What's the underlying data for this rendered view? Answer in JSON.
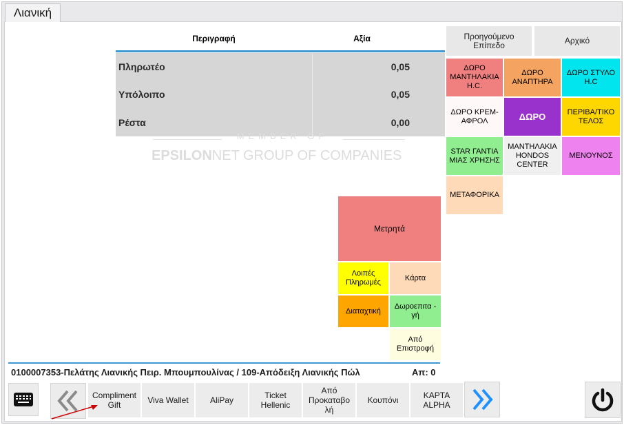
{
  "tab": {
    "label": "Λιανική"
  },
  "table": {
    "headers": {
      "description": "Περιγραφή",
      "value": "Αξία"
    },
    "totals": [
      {
        "label": "Πληρωτέο",
        "value": "0,05"
      },
      {
        "label": "Υπόλοιπο",
        "value": "0,05"
      },
      {
        "label": "Ρέστα",
        "value": "0,00"
      }
    ]
  },
  "watermark": {
    "line1": "MEMBER OF",
    "line2_bold": "EPSILON",
    "line2_rest": "NET GROUP OF COMPANIES"
  },
  "nav": {
    "previous_level": "Προηγούμενο Επίπεδο",
    "home": "Αρχικό"
  },
  "categories": [
    {
      "label": "ΔΩΡΟ ΜΑΝΤΗΛΑΚΙΑ Η.C.",
      "color": "#f08080"
    },
    {
      "label": "ΔΩΡΟ ΑΝΑΠΤΗΡΑ",
      "color": "#f4a460"
    },
    {
      "label": "ΔΩΡΟ ΣΤΥΛΟ Η.C",
      "color": "#00e5ee"
    },
    {
      "label": "ΔΩΡΟ ΚΡΕΜ-ΑΦΡΟΛ",
      "color": "#fff8f8"
    },
    {
      "label": "ΔΩΡΟ",
      "color": "#9932cc"
    },
    {
      "label": "ΠΕΡΙΒΑ/ΤΙΚΟ ΤΕΛΟΣ",
      "color": "#ffd700"
    },
    {
      "label": "STAR ΓΑΝΤΙΑ ΜΙΑΣ ΧΡΗΣΗΣ",
      "color": "#90ee90"
    },
    {
      "label": "ΜΑΝΤΗΛΑΚΙΑ HONDOS CENTER",
      "color": "#f0f0f0"
    },
    {
      "label": "ΜΕΝΟΥΝΟΣ",
      "color": "#ee82ee"
    },
    {
      "label": "ΜΕΤΑΦΟΡΙΚΑ",
      "color": "#ffdab9"
    }
  ],
  "payments": {
    "cash": "Μετρητά",
    "other": "Λοιπές Πληρωμές",
    "card": "Κάρτα",
    "order": "Διαταχτική",
    "gift_card": "Δωροεπιτα - γή",
    "from_return": "Από Επιστροφή"
  },
  "status": {
    "text": "0100007353-Πελάτης Λιανικής Πειρ. Μπουμπουλίνας / 109-Απόδειξη Λιανικής Πώλ",
    "count": "Απ: 0"
  },
  "bottom_bar": [
    "Compliment Gift",
    "Viva Wallet",
    "AliPay",
    "Ticket Hellenic",
    "Από Προκαταβο λή",
    "Κουπόνι",
    "ΚΑΡΤΑ ALPHA"
  ]
}
